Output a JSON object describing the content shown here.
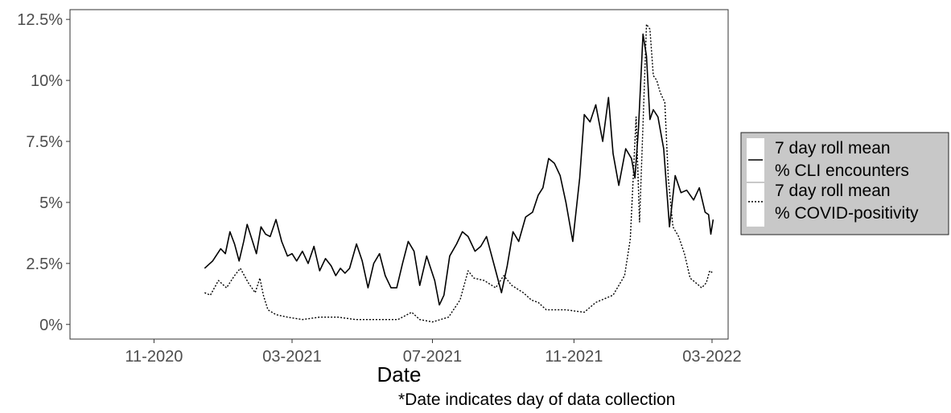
{
  "chart_data": {
    "type": "line",
    "xlabel": "Date",
    "ylabel": "",
    "note": "*Date indicates day of data collection",
    "x_ticks": [
      "11-2020",
      "03-2021",
      "07-2021",
      "11-2021",
      "03-2022"
    ],
    "y_ticks": [
      "0%",
      "2.5%",
      "5%",
      "7.5%",
      "10%",
      "12.5%"
    ],
    "xlim": [
      "2020-08-20",
      "2022-03-15"
    ],
    "ylim": [
      -0.6,
      12.9
    ],
    "grid": false,
    "legend_position": "right",
    "series": [
      {
        "name": "7 day roll mean % CLI encounters",
        "style": "solid",
        "color": "#000000",
        "points": [
          [
            "2020-12-15",
            2.3
          ],
          [
            "2020-12-22",
            2.6
          ],
          [
            "2020-12-29",
            3.1
          ],
          [
            "2021-01-02",
            2.9
          ],
          [
            "2021-01-06",
            3.8
          ],
          [
            "2021-01-10",
            3.3
          ],
          [
            "2021-01-14",
            2.6
          ],
          [
            "2021-01-18",
            3.4
          ],
          [
            "2021-01-21",
            4.1
          ],
          [
            "2021-01-25",
            3.5
          ],
          [
            "2021-01-29",
            2.9
          ],
          [
            "2021-02-02",
            4.0
          ],
          [
            "2021-02-06",
            3.7
          ],
          [
            "2021-02-10",
            3.6
          ],
          [
            "2021-02-15",
            4.3
          ],
          [
            "2021-02-20",
            3.4
          ],
          [
            "2021-02-25",
            2.8
          ],
          [
            "2021-03-01",
            2.9
          ],
          [
            "2021-03-05",
            2.6
          ],
          [
            "2021-03-10",
            3.0
          ],
          [
            "2021-03-15",
            2.5
          ],
          [
            "2021-03-20",
            3.2
          ],
          [
            "2021-03-25",
            2.2
          ],
          [
            "2021-03-30",
            2.7
          ],
          [
            "2021-04-04",
            2.4
          ],
          [
            "2021-04-08",
            2.0
          ],
          [
            "2021-04-12",
            2.3
          ],
          [
            "2021-04-16",
            2.1
          ],
          [
            "2021-04-20",
            2.3
          ],
          [
            "2021-04-26",
            3.3
          ],
          [
            "2021-05-01",
            2.6
          ],
          [
            "2021-05-06",
            1.5
          ],
          [
            "2021-05-11",
            2.5
          ],
          [
            "2021-05-16",
            2.9
          ],
          [
            "2021-05-21",
            2.0
          ],
          [
            "2021-05-26",
            1.5
          ],
          [
            "2021-05-31",
            1.5
          ],
          [
            "2021-06-05",
            2.5
          ],
          [
            "2021-06-10",
            3.4
          ],
          [
            "2021-06-15",
            3.0
          ],
          [
            "2021-06-20",
            1.6
          ],
          [
            "2021-06-26",
            2.8
          ],
          [
            "2021-07-03",
            1.8
          ],
          [
            "2021-07-07",
            0.8
          ],
          [
            "2021-07-11",
            1.2
          ],
          [
            "2021-07-16",
            2.8
          ],
          [
            "2021-07-22",
            3.3
          ],
          [
            "2021-07-27",
            3.8
          ],
          [
            "2021-08-01",
            3.6
          ],
          [
            "2021-08-07",
            3.0
          ],
          [
            "2021-08-12",
            3.2
          ],
          [
            "2021-08-17",
            3.6
          ],
          [
            "2021-08-21",
            2.9
          ],
          [
            "2021-08-25",
            2.2
          ],
          [
            "2021-08-30",
            1.3
          ],
          [
            "2021-09-04",
            2.4
          ],
          [
            "2021-09-09",
            3.8
          ],
          [
            "2021-09-14",
            3.4
          ],
          [
            "2021-09-20",
            4.4
          ],
          [
            "2021-09-26",
            4.6
          ],
          [
            "2021-10-01",
            5.3
          ],
          [
            "2021-10-05",
            5.6
          ],
          [
            "2021-10-10",
            6.8
          ],
          [
            "2021-10-15",
            6.6
          ],
          [
            "2021-10-20",
            6.1
          ],
          [
            "2021-10-25",
            5.0
          ],
          [
            "2021-10-31",
            3.4
          ],
          [
            "2021-11-06",
            6.0
          ],
          [
            "2021-11-10",
            8.6
          ],
          [
            "2021-11-15",
            8.3
          ],
          [
            "2021-11-20",
            9.0
          ],
          [
            "2021-11-26",
            7.5
          ],
          [
            "2021-12-01",
            9.3
          ],
          [
            "2021-12-05",
            7.0
          ],
          [
            "2021-12-10",
            5.7
          ],
          [
            "2021-12-16",
            7.2
          ],
          [
            "2021-12-21",
            6.8
          ],
          [
            "2021-12-24",
            6.0
          ],
          [
            "2021-12-27",
            8.0
          ],
          [
            "2021-12-31",
            11.9
          ],
          [
            "2022-01-03",
            11.0
          ],
          [
            "2022-01-06",
            8.4
          ],
          [
            "2022-01-09",
            8.8
          ],
          [
            "2022-01-13",
            8.5
          ],
          [
            "2022-01-18",
            7.2
          ],
          [
            "2022-01-23",
            4.0
          ],
          [
            "2022-01-28",
            6.1
          ],
          [
            "2022-02-02",
            5.4
          ],
          [
            "2022-02-07",
            5.5
          ],
          [
            "2022-02-13",
            5.1
          ],
          [
            "2022-02-18",
            5.6
          ],
          [
            "2022-02-23",
            4.6
          ],
          [
            "2022-02-26",
            4.5
          ],
          [
            "2022-02-28",
            3.7
          ],
          [
            "2022-03-02",
            4.3
          ]
        ]
      },
      {
        "name": "7 day roll mean % COVID-positivity",
        "style": "dotted",
        "color": "#000000",
        "points": [
          [
            "2020-12-15",
            1.3
          ],
          [
            "2020-12-20",
            1.2
          ],
          [
            "2020-12-27",
            1.8
          ],
          [
            "2021-01-03",
            1.5
          ],
          [
            "2021-01-10",
            2.0
          ],
          [
            "2021-01-15",
            2.3
          ],
          [
            "2021-01-22",
            1.7
          ],
          [
            "2021-01-28",
            1.3
          ],
          [
            "2021-02-01",
            1.9
          ],
          [
            "2021-02-04",
            1.2
          ],
          [
            "2021-02-08",
            0.6
          ],
          [
            "2021-02-15",
            0.4
          ],
          [
            "2021-02-25",
            0.3
          ],
          [
            "2021-03-10",
            0.2
          ],
          [
            "2021-03-25",
            0.3
          ],
          [
            "2021-04-10",
            0.3
          ],
          [
            "2021-04-25",
            0.2
          ],
          [
            "2021-05-15",
            0.2
          ],
          [
            "2021-06-01",
            0.2
          ],
          [
            "2021-06-13",
            0.5
          ],
          [
            "2021-06-20",
            0.2
          ],
          [
            "2021-07-01",
            0.1
          ],
          [
            "2021-07-15",
            0.3
          ],
          [
            "2021-07-25",
            1.0
          ],
          [
            "2021-08-01",
            2.2
          ],
          [
            "2021-08-06",
            1.9
          ],
          [
            "2021-08-15",
            1.8
          ],
          [
            "2021-08-25",
            1.5
          ],
          [
            "2021-09-01",
            2.0
          ],
          [
            "2021-09-08",
            1.6
          ],
          [
            "2021-09-18",
            1.3
          ],
          [
            "2021-09-25",
            1.0
          ],
          [
            "2021-10-01",
            0.9
          ],
          [
            "2021-10-08",
            0.6
          ],
          [
            "2021-10-25",
            0.6
          ],
          [
            "2021-11-10",
            0.5
          ],
          [
            "2021-11-20",
            0.9
          ],
          [
            "2021-12-05",
            1.2
          ],
          [
            "2021-12-15",
            2.0
          ],
          [
            "2021-12-20",
            3.5
          ],
          [
            "2021-12-25",
            8.5
          ],
          [
            "2021-12-28",
            4.2
          ],
          [
            "2021-12-31",
            8.2
          ],
          [
            "2022-01-03",
            12.3
          ],
          [
            "2022-01-06",
            12.1
          ],
          [
            "2022-01-09",
            10.2
          ],
          [
            "2022-01-12",
            10.0
          ],
          [
            "2022-01-15",
            9.5
          ],
          [
            "2022-01-19",
            9.1
          ],
          [
            "2022-01-22",
            6.0
          ],
          [
            "2022-01-26",
            4.0
          ],
          [
            "2022-01-31",
            3.6
          ],
          [
            "2022-02-05",
            2.9
          ],
          [
            "2022-02-10",
            1.9
          ],
          [
            "2022-02-15",
            1.7
          ],
          [
            "2022-02-20",
            1.5
          ],
          [
            "2022-02-24",
            1.7
          ],
          [
            "2022-02-27",
            2.2
          ],
          [
            "2022-03-02",
            2.1
          ]
        ]
      }
    ]
  }
}
